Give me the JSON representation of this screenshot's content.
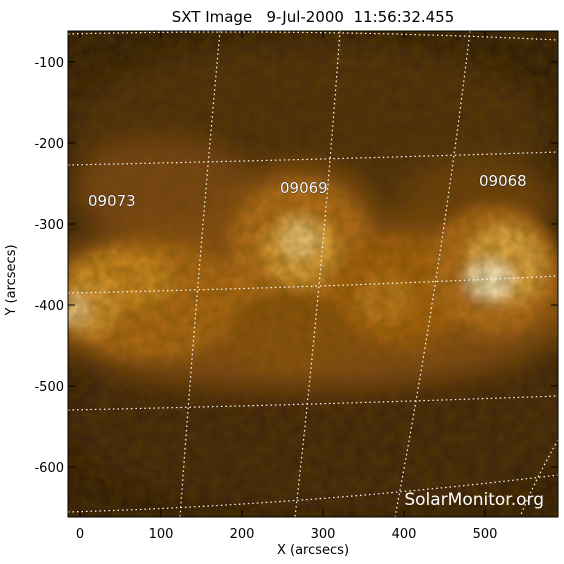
{
  "title": "SXT Image   9-Jul-2000  11:56:32.455",
  "x_axis": {
    "label": "X (arcsecs)",
    "ticks": [
      "0",
      "100",
      "200",
      "300",
      "400",
      "500"
    ]
  },
  "y_axis": {
    "label": "Y (arcsecs)",
    "ticks": [
      "-100",
      "-200",
      "-300",
      "-400",
      "-500",
      "-600"
    ]
  },
  "regions": [
    {
      "name": "09073"
    },
    {
      "name": "09069"
    },
    {
      "name": "09068"
    }
  ],
  "watermark": "SolarMonitor.org",
  "colors": {
    "background": "#2a1606",
    "emission": "#c87810",
    "bright": "#fff0c8",
    "grid": "#ffffff"
  }
}
